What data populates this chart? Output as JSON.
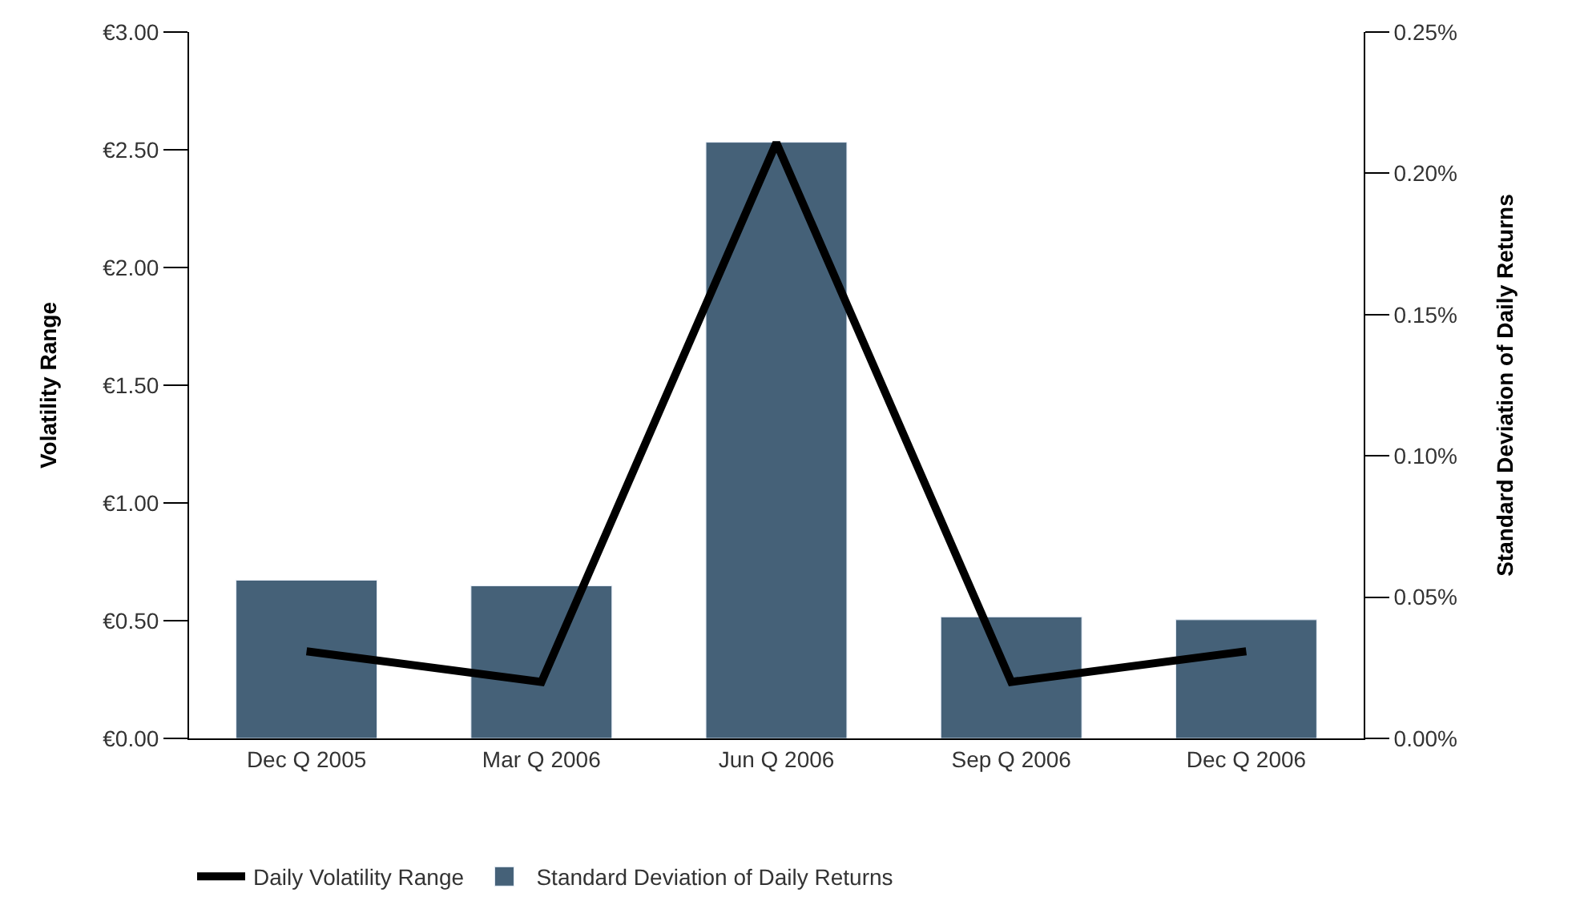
{
  "chart_data": {
    "type": "bar",
    "ylabel": "Volatility Range",
    "y2label": "Standard Deviation of Daily Returns",
    "categories": [
      "Dec Q 2005",
      "Mar Q 2006",
      "Jun Q 2006",
      "Sep Q 2006",
      "Dec Q 2006"
    ],
    "series": [
      {
        "name": "Daily Volatility Range",
        "type": "line",
        "color": "#000000",
        "values": [
          0.37,
          0.24,
          2.53,
          0.24,
          0.37
        ]
      },
      {
        "name": "Standard Deviation of Daily Returns",
        "axis": "y2",
        "color": "#456178",
        "values": [
          0.056,
          0.054,
          0.211,
          0.043,
          0.042
        ]
      }
    ],
    "ylim": [
      0,
      3
    ],
    "yticks": [
      {
        "value": 0,
        "label": "€0.00"
      },
      {
        "value": 0.5,
        "label": "€0.50"
      },
      {
        "value": 1,
        "label": "€1.00"
      },
      {
        "value": 1.5,
        "label": "€1.50"
      },
      {
        "value": 2,
        "label": "€2.00"
      },
      {
        "value": 2.5,
        "label": "€2.50"
      },
      {
        "value": 3,
        "label": "€3.00"
      }
    ],
    "y2lim": [
      0,
      0.25
    ],
    "y2ticks": [
      {
        "value": 0,
        "label": "0.00%"
      },
      {
        "value": 0.05,
        "label": "0.05%"
      },
      {
        "value": 0.1,
        "label": "0.10%"
      },
      {
        "value": 0.15,
        "label": "0.15%"
      },
      {
        "value": 0.2,
        "label": "0.20%"
      },
      {
        "value": 0.25,
        "label": "0.25%"
      }
    ],
    "legend": "bottom left",
    "marker": "none",
    "line_style": "solid"
  }
}
